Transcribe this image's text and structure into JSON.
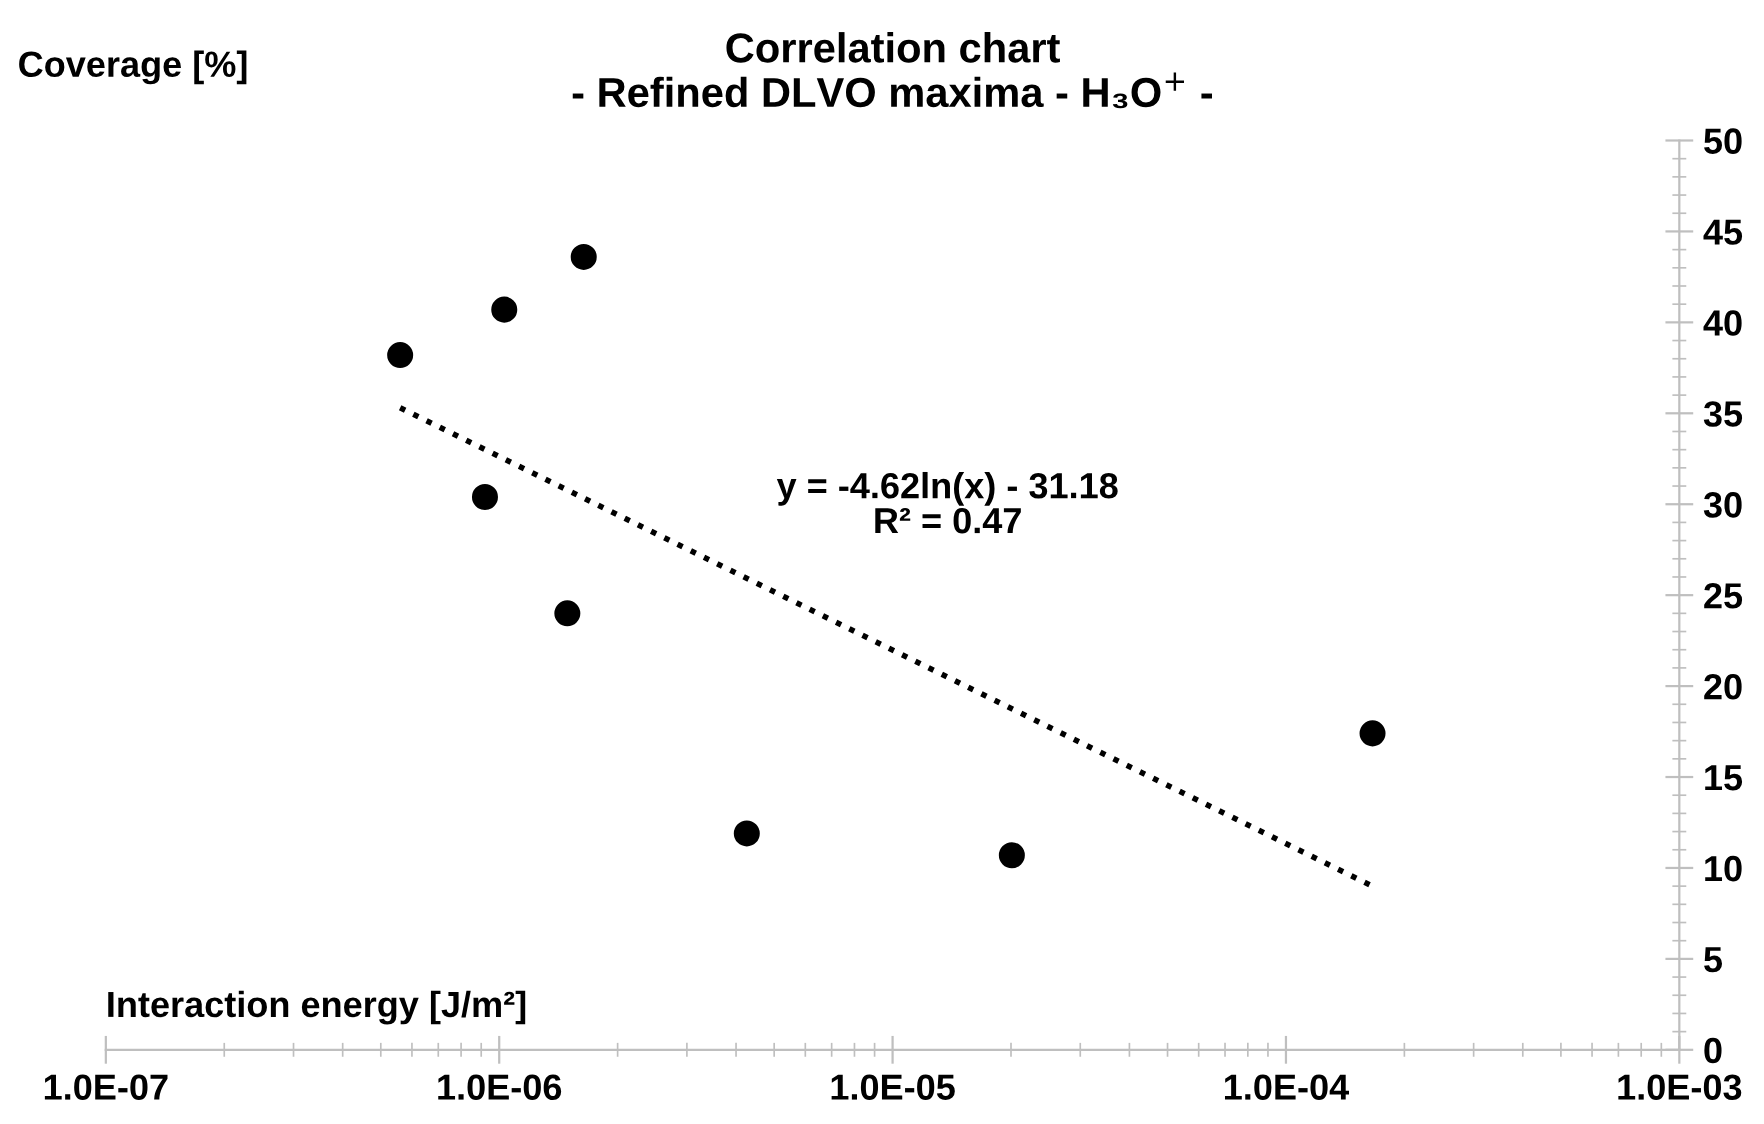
{
  "chart_data": {
    "type": "scatter",
    "title": "Correlation chart\n- Refined DLVO maxima - H₃O$^{+}$ -",
    "xlabel": "Interaction energy [J/m²]",
    "ylabel": "Coverage [%]",
    "annotations": [
      "y = -4.62ln(x) - 31.18\nR² = 0.47"
    ],
    "log": "x",
    "marker": "circle",
    "grid": false,
    "legend": false,
    "xlim": [
      1e-07,
      0.001
    ],
    "xticks": [
      {
        "value": 1e-07,
        "label": "1.0E-07"
      },
      {
        "value": 1e-06,
        "label": "1.0E-06"
      },
      {
        "value": 1e-05,
        "label": "1.0E-05"
      },
      {
        "value": 0.0001,
        "label": "1.0E-04"
      },
      {
        "value": 0.001,
        "label": "1.0E-03"
      }
    ],
    "ylim": [
      0,
      50
    ],
    "yticks": [
      0,
      5,
      10,
      15,
      20,
      25,
      30,
      35,
      40,
      45,
      50
    ],
    "series": [
      {
        "color": "#000000",
        "x": [
          5.6e-07,
          1.03e-06,
          1.64e-06,
          9.2e-07,
          1.49e-06,
          4.26e-06,
          2.01e-05,
          0.000166
        ],
        "values": [
          38.2,
          40.7,
          43.6,
          30.4,
          24.0,
          11.9,
          10.7,
          17.4
        ]
      },
      {
        "type": "line",
        "color": "#000000",
        "line_style": "dotted",
        "marker": "none",
        "x": [
          5.6e-07,
          0.000166
        ],
        "values": [
          35.3,
          9.0
        ]
      }
    ]
  }
}
